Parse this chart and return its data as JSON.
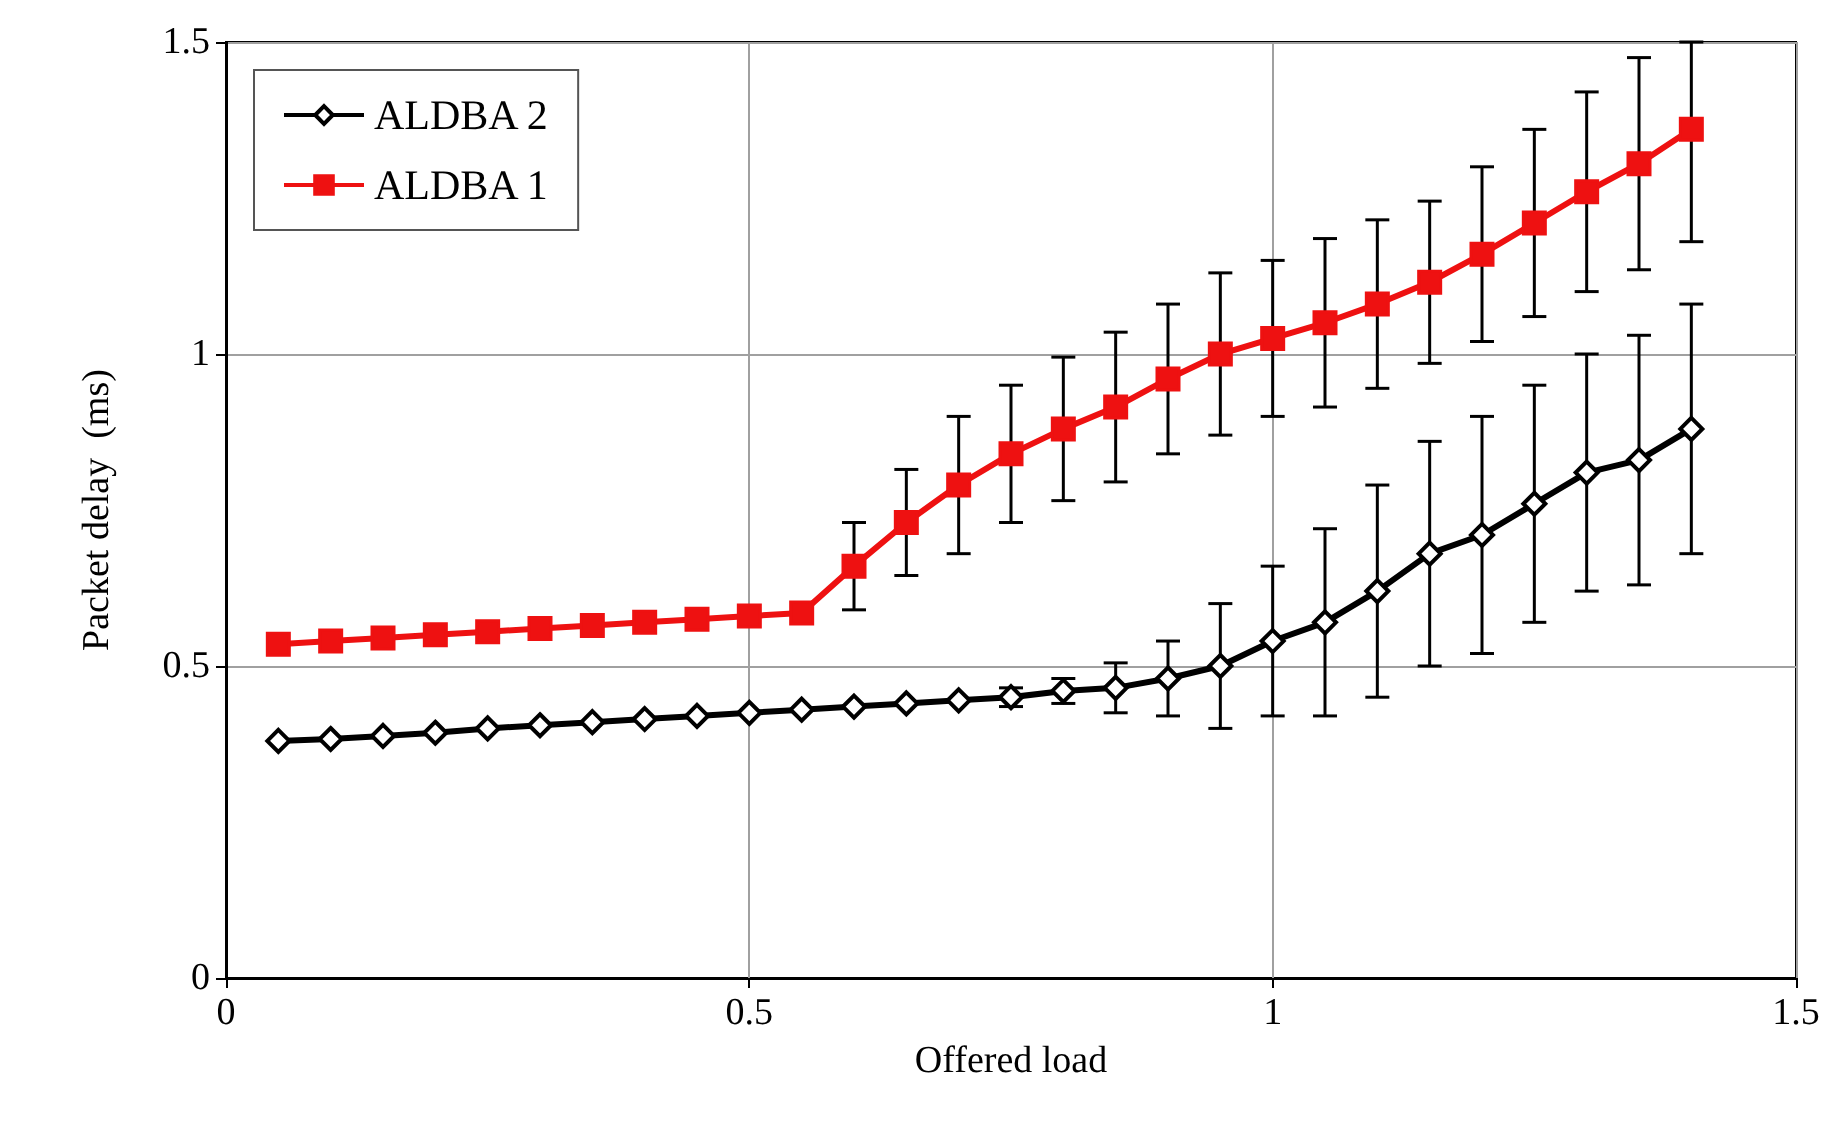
{
  "chart_data": {
    "type": "line",
    "xlabel": "Offered load",
    "ylabel": "Packet delay  (ms)",
    "x": [
      0.05,
      0.1,
      0.15,
      0.2,
      0.25,
      0.3,
      0.35,
      0.4,
      0.45,
      0.5,
      0.55,
      0.6,
      0.65,
      0.7,
      0.75,
      0.8,
      0.85,
      0.9,
      0.95,
      1.0,
      1.05,
      1.1,
      1.15,
      1.2,
      1.25,
      1.3,
      1.35,
      1.4
    ],
    "series": [
      {
        "name": "ALDBA 2",
        "color": "#000000",
        "marker": "diamond",
        "values": [
          0.38,
          0.383,
          0.388,
          0.393,
          0.4,
          0.405,
          0.41,
          0.415,
          0.42,
          0.425,
          0.43,
          0.435,
          0.44,
          0.445,
          0.45,
          0.46,
          0.465,
          0.48,
          0.5,
          0.54,
          0.57,
          0.62,
          0.68,
          0.71,
          0.76,
          0.81,
          0.83,
          0.88
        ],
        "errors": [
          null,
          null,
          null,
          null,
          null,
          null,
          null,
          null,
          null,
          null,
          null,
          null,
          null,
          null,
          0.015,
          0.02,
          0.04,
          0.06,
          0.1,
          0.12,
          0.15,
          0.17,
          0.18,
          0.19,
          0.19,
          0.19,
          0.2,
          0.2
        ]
      },
      {
        "name": "ALDBA 1",
        "color": "#ee1111",
        "marker": "square",
        "values": [
          0.535,
          0.54,
          0.545,
          0.55,
          0.555,
          0.56,
          0.565,
          0.57,
          0.575,
          0.58,
          0.585,
          0.66,
          0.73,
          0.79,
          0.84,
          0.88,
          0.915,
          0.96,
          1.0,
          1.025,
          1.05,
          1.08,
          1.115,
          1.16,
          1.21,
          1.26,
          1.305,
          1.36
        ],
        "errors": [
          null,
          null,
          null,
          null,
          null,
          null,
          null,
          null,
          null,
          null,
          null,
          0.07,
          0.085,
          0.11,
          0.11,
          0.115,
          0.12,
          0.12,
          0.13,
          0.125,
          0.135,
          0.135,
          0.13,
          0.14,
          0.15,
          0.16,
          0.17,
          [
            1.18,
            1.5
          ]
        ]
      }
    ],
    "xlim": [
      0,
      1.5
    ],
    "xticks": [
      0,
      0.5,
      1,
      1.5
    ],
    "ylim": [
      0,
      1.5
    ],
    "yticks": [
      0,
      0.5,
      1,
      1.5
    ],
    "grid": true,
    "legend": "top left",
    "line_style": "solid"
  }
}
